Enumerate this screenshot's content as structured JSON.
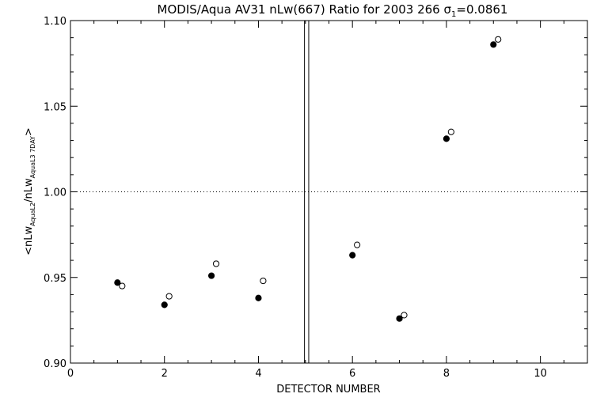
{
  "chart_data": {
    "type": "scatter",
    "title": "MODIS/Aqua AV31 nLw(667) Ratio for 2003 266 σ",
    "title_sub": "1",
    "title_tail": "=0.0861",
    "xlabel": "DETECTOR NUMBER",
    "ylabel_parts": {
      "open": "<nLw",
      "sub1": "AquaL2",
      "mid": "/nLw",
      "sub2": "AquaL3 7DAY",
      "close": ">"
    },
    "xlim": [
      0,
      11
    ],
    "ylim": [
      0.9,
      1.1
    ],
    "xticks": [
      0,
      2,
      4,
      6,
      8,
      10
    ],
    "xtick_labels": [
      "0",
      "2",
      "4",
      "6",
      "8",
      "10"
    ],
    "yticks": [
      0.9,
      0.95,
      1.0,
      1.05,
      1.1
    ],
    "ytick_labels": [
      "0.90",
      "0.95",
      "1.00",
      "1.05",
      "1.10"
    ],
    "reference_line_y": 1.0,
    "separator_x": [
      4.98,
      5.07
    ],
    "grid": false,
    "series": [
      {
        "marker": "filled-circle",
        "x": [
          1,
          2,
          3,
          4,
          6,
          7,
          8,
          9
        ],
        "y": [
          0.947,
          0.934,
          0.951,
          0.938,
          0.963,
          0.926,
          1.031,
          1.086
        ]
      },
      {
        "marker": "open-circle",
        "x": [
          1.1,
          2.1,
          3.1,
          4.1,
          6.1,
          7.1,
          8.1,
          9.1
        ],
        "y": [
          0.945,
          0.939,
          0.958,
          0.948,
          0.969,
          0.928,
          1.035,
          1.089
        ]
      }
    ]
  }
}
